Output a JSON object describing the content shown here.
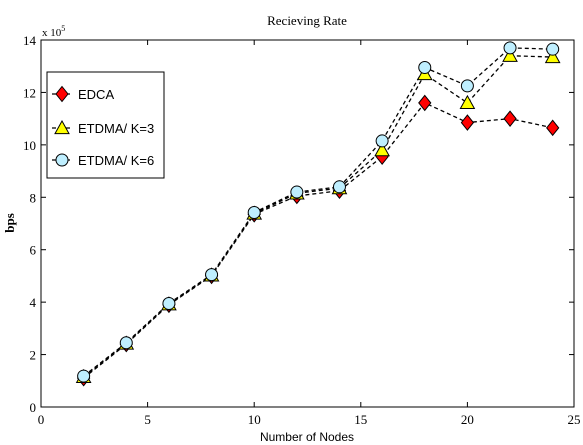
{
  "chart_data": {
    "type": "line",
    "title": "Recieving Rate",
    "xlabel": "Number of Nodes",
    "ylabel": "bps",
    "y_scale_label": "x 10",
    "y_scale_exponent": "5",
    "xlim": [
      0,
      25
    ],
    "ylim": [
      0,
      14
    ],
    "x_ticks": [
      0,
      5,
      10,
      15,
      20,
      25
    ],
    "y_ticks": [
      0,
      2,
      4,
      6,
      8,
      10,
      12,
      14
    ],
    "grid": false,
    "legend_position": "top-left",
    "x": [
      2,
      4,
      6,
      8,
      10,
      12,
      14,
      16,
      18,
      20,
      22,
      24
    ],
    "series": [
      {
        "name": "EDCA",
        "marker": "diamond",
        "color": "#ff0000",
        "values": [
          1.1,
          2.4,
          3.9,
          5.0,
          7.35,
          8.05,
          8.25,
          9.55,
          11.6,
          10.85,
          11.0,
          10.65
        ]
      },
      {
        "name": "ETDMA/ K=3",
        "marker": "triangle",
        "color": "#ffff00",
        "values": [
          1.15,
          2.42,
          3.92,
          5.02,
          7.38,
          8.15,
          8.35,
          9.8,
          12.7,
          11.6,
          13.4,
          13.35
        ]
      },
      {
        "name": "ETDMA/ K=6",
        "marker": "circle",
        "color": "#bfefff",
        "values": [
          1.18,
          2.45,
          3.95,
          5.05,
          7.42,
          8.2,
          8.4,
          10.15,
          12.95,
          12.25,
          13.7,
          13.65
        ]
      }
    ]
  }
}
